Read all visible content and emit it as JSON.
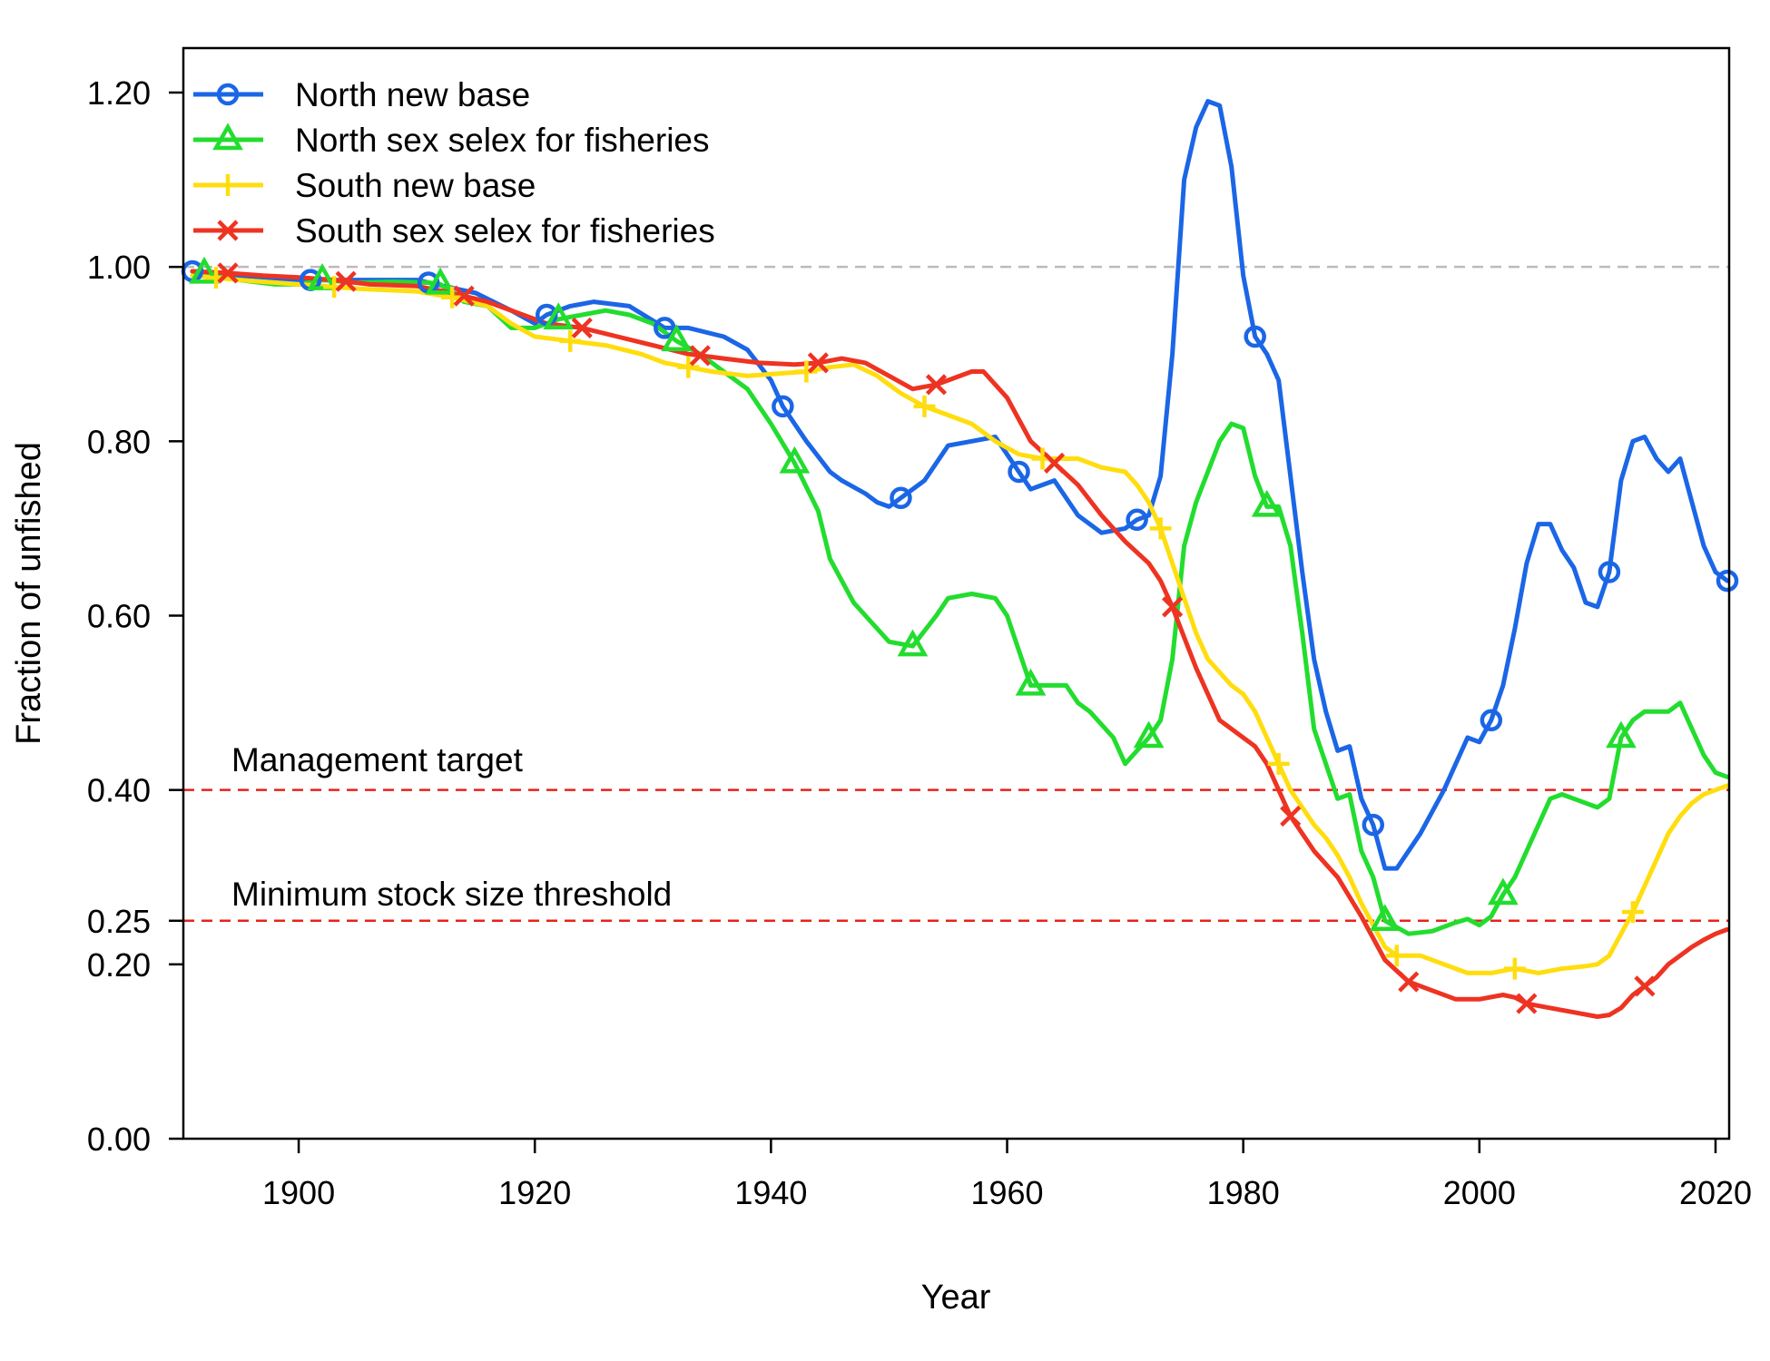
{
  "chart_data": {
    "type": "line",
    "title": "",
    "xlabel": "Year",
    "ylabel": "Fraction of unfished",
    "xlim": [
      1890,
      2021
    ],
    "ylim": [
      0,
      1.25
    ],
    "x_ticks": [
      1900,
      1920,
      1940,
      1960,
      1980,
      2000,
      2020
    ],
    "x_tick_labels": [
      "1900",
      "1920",
      "1940",
      "1960",
      "1980",
      "2000",
      "2020"
    ],
    "y_ticks": [
      0.0,
      0.2,
      0.25,
      0.4,
      0.6,
      0.8,
      1.0,
      1.2
    ],
    "y_tick_labels": [
      "0.00",
      "0.20",
      "0.25",
      "0.40",
      "0.60",
      "0.80",
      "1.00",
      "1.20"
    ],
    "grid": false,
    "legend_position": "top-left",
    "reference_lines": [
      {
        "y": 1.0,
        "color": "#bbbbbb",
        "style": "dashed",
        "label": ""
      },
      {
        "y": 0.4,
        "color": "#e8211d",
        "style": "dashed",
        "label": "Management target"
      },
      {
        "y": 0.25,
        "color": "#e8211d",
        "style": "dashed",
        "label": "Minimum stock size threshold"
      }
    ],
    "series": [
      {
        "name": "North new base",
        "color": "#1b66e6",
        "marker": "circle",
        "marker_years": [
          1891,
          1901,
          1911,
          1921,
          1931,
          1941,
          1951,
          1961,
          1971,
          1981,
          1991,
          2001,
          2011,
          2021
        ],
        "x": [
          1891,
          1895,
          1900,
          1905,
          1910,
          1915,
          1918,
          1920,
          1921,
          1923,
          1925,
          1928,
          1931,
          1933,
          1936,
          1938,
          1940,
          1941,
          1943,
          1945,
          1946,
          1948,
          1949,
          1950,
          1951,
          1953,
          1955,
          1957,
          1959,
          1961,
          1962,
          1964,
          1966,
          1968,
          1970,
          1971,
          1972,
          1973,
          1974,
          1975,
          1976,
          1977,
          1978,
          1979,
          1980,
          1981,
          1982,
          1983,
          1984,
          1985,
          1986,
          1987,
          1988,
          1989,
          1990,
          1991,
          1992,
          1993,
          1995,
          1997,
          1999,
          2000,
          2001,
          2002,
          2003,
          2004,
          2005,
          2006,
          2007,
          2008,
          2009,
          2010,
          2011,
          2012,
          2013,
          2014,
          2015,
          2016,
          2017,
          2018,
          2019,
          2020,
          2021
        ],
        "y": [
          0.995,
          0.99,
          0.985,
          0.985,
          0.985,
          0.97,
          0.95,
          0.935,
          0.945,
          0.955,
          0.96,
          0.955,
          0.93,
          0.93,
          0.92,
          0.905,
          0.87,
          0.84,
          0.8,
          0.765,
          0.755,
          0.74,
          0.73,
          0.725,
          0.735,
          0.755,
          0.795,
          0.8,
          0.805,
          0.765,
          0.745,
          0.755,
          0.715,
          0.695,
          0.7,
          0.71,
          0.715,
          0.76,
          0.9,
          1.1,
          1.16,
          1.19,
          1.185,
          1.115,
          0.99,
          0.92,
          0.9,
          0.87,
          0.76,
          0.65,
          0.55,
          0.49,
          0.445,
          0.45,
          0.39,
          0.36,
          0.31,
          0.31,
          0.35,
          0.4,
          0.46,
          0.455,
          0.48,
          0.52,
          0.585,
          0.66,
          0.705,
          0.705,
          0.675,
          0.655,
          0.615,
          0.61,
          0.65,
          0.755,
          0.8,
          0.805,
          0.78,
          0.765,
          0.78,
          0.73,
          0.68,
          0.65,
          0.64
        ]
      },
      {
        "name": "North sex selex for fisheries",
        "color": "#22dd2e",
        "marker": "triangle",
        "marker_years": [
          1892,
          1902,
          1912,
          1922,
          1932,
          1942,
          1952,
          1962,
          1972,
          1982,
          1992,
          2002,
          2012
        ],
        "x": [
          1891,
          1893,
          1895,
          1898,
          1900,
          1902,
          1905,
          1908,
          1911,
          1912,
          1914,
          1916,
          1918,
          1920,
          1922,
          1924,
          1926,
          1928,
          1930,
          1932,
          1934,
          1936,
          1938,
          1940,
          1942,
          1944,
          1945,
          1947,
          1948,
          1950,
          1952,
          1954,
          1955,
          1957,
          1959,
          1960,
          1962,
          1963,
          1965,
          1966,
          1967,
          1969,
          1970,
          1972,
          1973,
          1974,
          1975,
          1976,
          1978,
          1979,
          1980,
          1981,
          1982,
          1983,
          1984,
          1985,
          1986,
          1987,
          1988,
          1989,
          1990,
          1991,
          1992,
          1994,
          1996,
          1998,
          1999,
          2000,
          2001,
          2002,
          2003,
          2005,
          2006,
          2007,
          2008,
          2010,
          2011,
          2012,
          2013,
          2014,
          2015,
          2016,
          2017,
          2018,
          2019,
          2020,
          2021
        ],
        "y": [
          0.995,
          0.99,
          0.985,
          0.98,
          0.98,
          0.985,
          0.982,
          0.983,
          0.982,
          0.98,
          0.96,
          0.955,
          0.93,
          0.93,
          0.94,
          0.945,
          0.95,
          0.945,
          0.935,
          0.915,
          0.9,
          0.88,
          0.86,
          0.82,
          0.775,
          0.72,
          0.665,
          0.615,
          0.6,
          0.57,
          0.565,
          0.6,
          0.62,
          0.625,
          0.62,
          0.6,
          0.52,
          0.52,
          0.52,
          0.5,
          0.49,
          0.46,
          0.43,
          0.46,
          0.48,
          0.55,
          0.68,
          0.73,
          0.8,
          0.82,
          0.815,
          0.76,
          0.725,
          0.725,
          0.68,
          0.58,
          0.47,
          0.43,
          0.39,
          0.395,
          0.33,
          0.3,
          0.25,
          0.235,
          0.238,
          0.248,
          0.252,
          0.245,
          0.255,
          0.28,
          0.3,
          0.36,
          0.39,
          0.395,
          0.39,
          0.38,
          0.39,
          0.46,
          0.48,
          0.49,
          0.49,
          0.49,
          0.5,
          0.47,
          0.44,
          0.42,
          0.415
        ]
      },
      {
        "name": "South new base",
        "color": "#ffdd0e",
        "marker": "plus",
        "marker_years": [
          1893,
          1903,
          1913,
          1923,
          1933,
          1943,
          1953,
          1963,
          1973,
          1983,
          1993,
          2003,
          2013
        ],
        "x": [
          1891,
          1895,
          1900,
          1905,
          1910,
          1913,
          1916,
          1918,
          1920,
          1923,
          1926,
          1929,
          1931,
          1933,
          1935,
          1938,
          1941,
          1943,
          1945,
          1947,
          1949,
          1951,
          1953,
          1955,
          1957,
          1959,
          1961,
          1963,
          1966,
          1968,
          1970,
          1971,
          1972,
          1973,
          1974,
          1975,
          1976,
          1977,
          1978,
          1979,
          1980,
          1981,
          1982,
          1983,
          1984,
          1985,
          1986,
          1987,
          1988,
          1989,
          1990,
          1991,
          1992,
          1993,
          1995,
          1997,
          1999,
          2001,
          2003,
          2005,
          2007,
          2009,
          2010,
          2011,
          2012,
          2013,
          2014,
          2015,
          2016,
          2017,
          2018,
          2019,
          2020,
          2021
        ],
        "y": [
          0.99,
          0.985,
          0.98,
          0.975,
          0.972,
          0.965,
          0.955,
          0.935,
          0.92,
          0.915,
          0.91,
          0.9,
          0.89,
          0.885,
          0.88,
          0.875,
          0.878,
          0.88,
          0.885,
          0.888,
          0.875,
          0.855,
          0.84,
          0.83,
          0.82,
          0.8,
          0.785,
          0.78,
          0.78,
          0.77,
          0.765,
          0.75,
          0.73,
          0.7,
          0.66,
          0.62,
          0.58,
          0.55,
          0.535,
          0.52,
          0.51,
          0.49,
          0.46,
          0.43,
          0.4,
          0.38,
          0.36,
          0.345,
          0.325,
          0.3,
          0.27,
          0.245,
          0.22,
          0.21,
          0.21,
          0.2,
          0.19,
          0.19,
          0.195,
          0.19,
          0.195,
          0.198,
          0.2,
          0.21,
          0.235,
          0.26,
          0.29,
          0.32,
          0.35,
          0.37,
          0.385,
          0.395,
          0.4,
          0.405
        ]
      },
      {
        "name": "South sex selex for fisheries",
        "color": "#ee3322",
        "marker": "cross",
        "marker_years": [
          1894,
          1904,
          1914,
          1924,
          1934,
          1944,
          1954,
          1964,
          1974,
          1984,
          1994,
          2004,
          2014
        ],
        "x": [
          1891,
          1894,
          1897,
          1900,
          1903,
          1906,
          1910,
          1913,
          1916,
          1919,
          1921,
          1924,
          1927,
          1930,
          1933,
          1936,
          1939,
          1942,
          1944,
          1946,
          1948,
          1950,
          1952,
          1954,
          1955,
          1957,
          1958,
          1960,
          1962,
          1964,
          1966,
          1968,
          1970,
          1972,
          1973,
          1974,
          1975,
          1976,
          1977,
          1978,
          1980,
          1981,
          1982,
          1983,
          1984,
          1986,
          1988,
          1990,
          1991,
          1992,
          1994,
          1996,
          1998,
          2000,
          2002,
          2003,
          2004,
          2006,
          2008,
          2010,
          2011,
          2012,
          2013,
          2014,
          2015,
          2016,
          2017,
          2018,
          2019,
          2020,
          2021
        ],
        "y": [
          0.995,
          0.993,
          0.99,
          0.988,
          0.985,
          0.98,
          0.978,
          0.97,
          0.96,
          0.945,
          0.935,
          0.93,
          0.92,
          0.91,
          0.9,
          0.895,
          0.89,
          0.888,
          0.89,
          0.895,
          0.89,
          0.875,
          0.86,
          0.865,
          0.87,
          0.88,
          0.88,
          0.85,
          0.8,
          0.775,
          0.75,
          0.715,
          0.685,
          0.66,
          0.64,
          0.61,
          0.575,
          0.54,
          0.51,
          0.48,
          0.46,
          0.45,
          0.43,
          0.4,
          0.37,
          0.33,
          0.3,
          0.255,
          0.23,
          0.205,
          0.18,
          0.17,
          0.16,
          0.16,
          0.165,
          0.162,
          0.155,
          0.15,
          0.145,
          0.14,
          0.142,
          0.15,
          0.165,
          0.175,
          0.185,
          0.2,
          0.21,
          0.22,
          0.228,
          0.235,
          0.24
        ]
      }
    ]
  }
}
